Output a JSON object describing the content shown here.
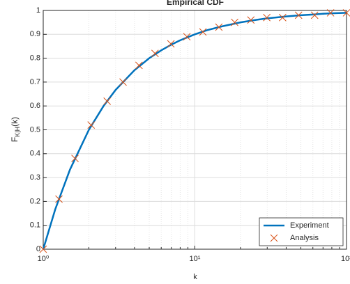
{
  "chart_data": {
    "type": "line",
    "title": "Empirical CDF",
    "xlabel": "k",
    "ylabel": {
      "main": "F",
      "sub": "K|H",
      "tail": "(k)"
    },
    "xscale": "log",
    "xlim": [
      1,
      100
    ],
    "xticks": [
      {
        "value": 1,
        "label": "10⁰"
      },
      {
        "value": 10,
        "label": "10¹"
      },
      {
        "value": 100,
        "label": "10²"
      }
    ],
    "ylim": [
      0,
      1
    ],
    "yticks": [
      0,
      0.1,
      0.2,
      0.3,
      0.4,
      0.5,
      0.6,
      0.7,
      0.8,
      0.9,
      1
    ],
    "grid": true,
    "legend": "southeast",
    "series": [
      {
        "name": "Experiment",
        "color": "#0072bd",
        "style": "line",
        "x": [
          1,
          1.2,
          1.5,
          2,
          2.5,
          3,
          4,
          5,
          6,
          7,
          8,
          10,
          12,
          15,
          20,
          25,
          30,
          40,
          50,
          60,
          70,
          80,
          100
        ],
        "values": [
          0,
          0.167,
          0.333,
          0.5,
          0.6,
          0.667,
          0.75,
          0.8,
          0.833,
          0.857,
          0.875,
          0.9,
          0.917,
          0.933,
          0.95,
          0.96,
          0.967,
          0.975,
          0.98,
          0.983,
          0.986,
          0.988,
          0.99
        ]
      },
      {
        "name": "Analysis",
        "color": "#d95319",
        "style": "marker",
        "x": [
          1,
          1.27,
          1.62,
          2.07,
          2.64,
          3.36,
          4.28,
          5.46,
          6.95,
          8.86,
          11.3,
          14.4,
          18.3,
          23.4,
          29.8,
          37.9,
          48.3,
          61.6,
          78.5,
          100
        ],
        "values": [
          0,
          0.21,
          0.38,
          0.52,
          0.62,
          0.7,
          0.77,
          0.82,
          0.86,
          0.89,
          0.91,
          0.93,
          0.95,
          0.96,
          0.97,
          0.97,
          0.98,
          0.98,
          0.99,
          0.99
        ]
      }
    ]
  }
}
